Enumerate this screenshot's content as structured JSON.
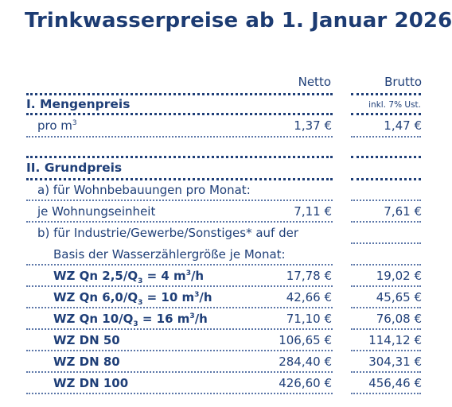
{
  "title": "Trinkwasserpreise ab 1. Januar 2026",
  "header": {
    "netto": "Netto",
    "brutto": "Brutto"
  },
  "section1": {
    "title": "I. Mengenpreis",
    "note": "inkl. 7% Ust.",
    "row": {
      "label_pre": "pro m",
      "label_sup": "3",
      "netto": "1,37 €",
      "brutto": "1,47 €"
    }
  },
  "section2": {
    "title": "II. Grundpreis",
    "a_label": "a) für Wohnbebauungen pro Monat:",
    "a_row": {
      "label": "je Wohnungseinheit",
      "netto": "7,11 €",
      "brutto": "7,61 €"
    },
    "b_label_1": "b) für Industrie/Gewerbe/Sonstiges* auf der",
    "b_label_2": "Basis der Wasserzählergröße je Monat:",
    "wz_rows": [
      {
        "pre": "WZ Qn 2,5/Q",
        "sub": "3",
        "mid": " = 4 m",
        "sup": "3",
        "post": "/h",
        "netto": "17,78 €",
        "brutto": "19,02 €"
      },
      {
        "pre": "WZ Qn 6,0/Q",
        "sub": "3",
        "mid": " = 10 m",
        "sup": "3",
        "post": "/h",
        "netto": "42,66 €",
        "brutto": "45,65 €"
      },
      {
        "pre": "WZ Qn 10/Q",
        "sub": "3",
        "mid": " = 16 m",
        "sup": "3",
        "post": "/h",
        "netto": "71,10 €",
        "brutto": "76,08 €"
      },
      {
        "pre": "WZ DN 50",
        "netto": "106,65 €",
        "brutto": "114,12 €"
      },
      {
        "pre": "WZ DN 80",
        "netto": "284,40 €",
        "brutto": "304,31 €"
      },
      {
        "pre": "WZ DN 100",
        "netto": "426,60 €",
        "brutto": "456,46 €"
      }
    ]
  }
}
